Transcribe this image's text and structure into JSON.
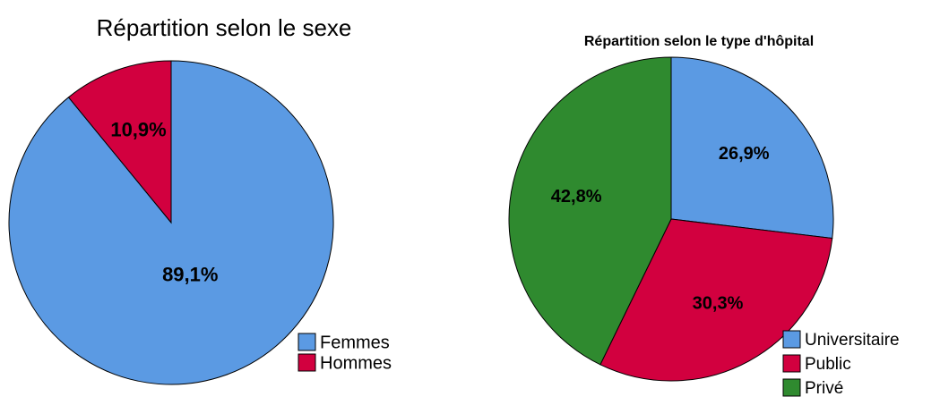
{
  "chart_data": [
    {
      "type": "pie",
      "title": "Répartition selon le sexe",
      "categories": [
        "Femmes",
        "Hommes"
      ],
      "values": [
        89.1,
        10.9
      ],
      "value_labels": [
        "89,1%",
        "10,9%"
      ],
      "colors": [
        "#5b9ae3",
        "#d2003f"
      ]
    },
    {
      "type": "pie",
      "title": "Répartition selon le type d'hôpital",
      "categories": [
        "Universitaire",
        "Public",
        "Privé"
      ],
      "values": [
        26.9,
        30.3,
        42.8
      ],
      "value_labels": [
        "26,9%",
        "30,3%",
        "42,8%"
      ],
      "colors": [
        "#5b9ae3",
        "#d2003f",
        "#2f8a2f"
      ]
    }
  ]
}
